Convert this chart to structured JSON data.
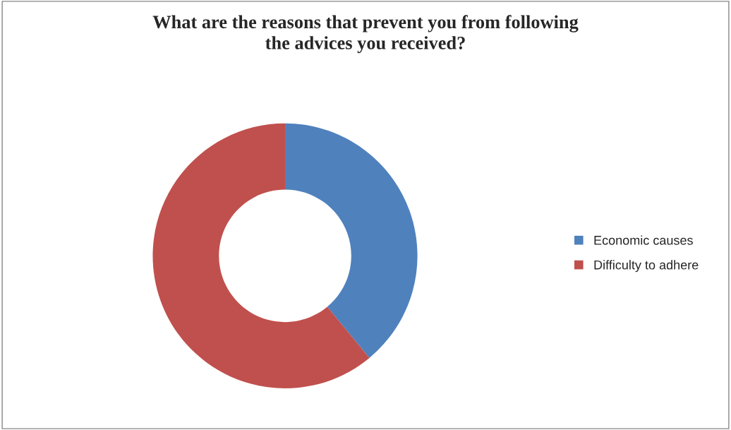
{
  "chart_data": {
    "type": "donut",
    "title": "What are the reasons that prevent you from following\nthe advices you received?",
    "categories": [
      "Economic causes",
      "Difficulty to adhere"
    ],
    "values": [
      39,
      61
    ],
    "colors": [
      "#4f81bd",
      "#c0504d"
    ],
    "legend": "right"
  }
}
